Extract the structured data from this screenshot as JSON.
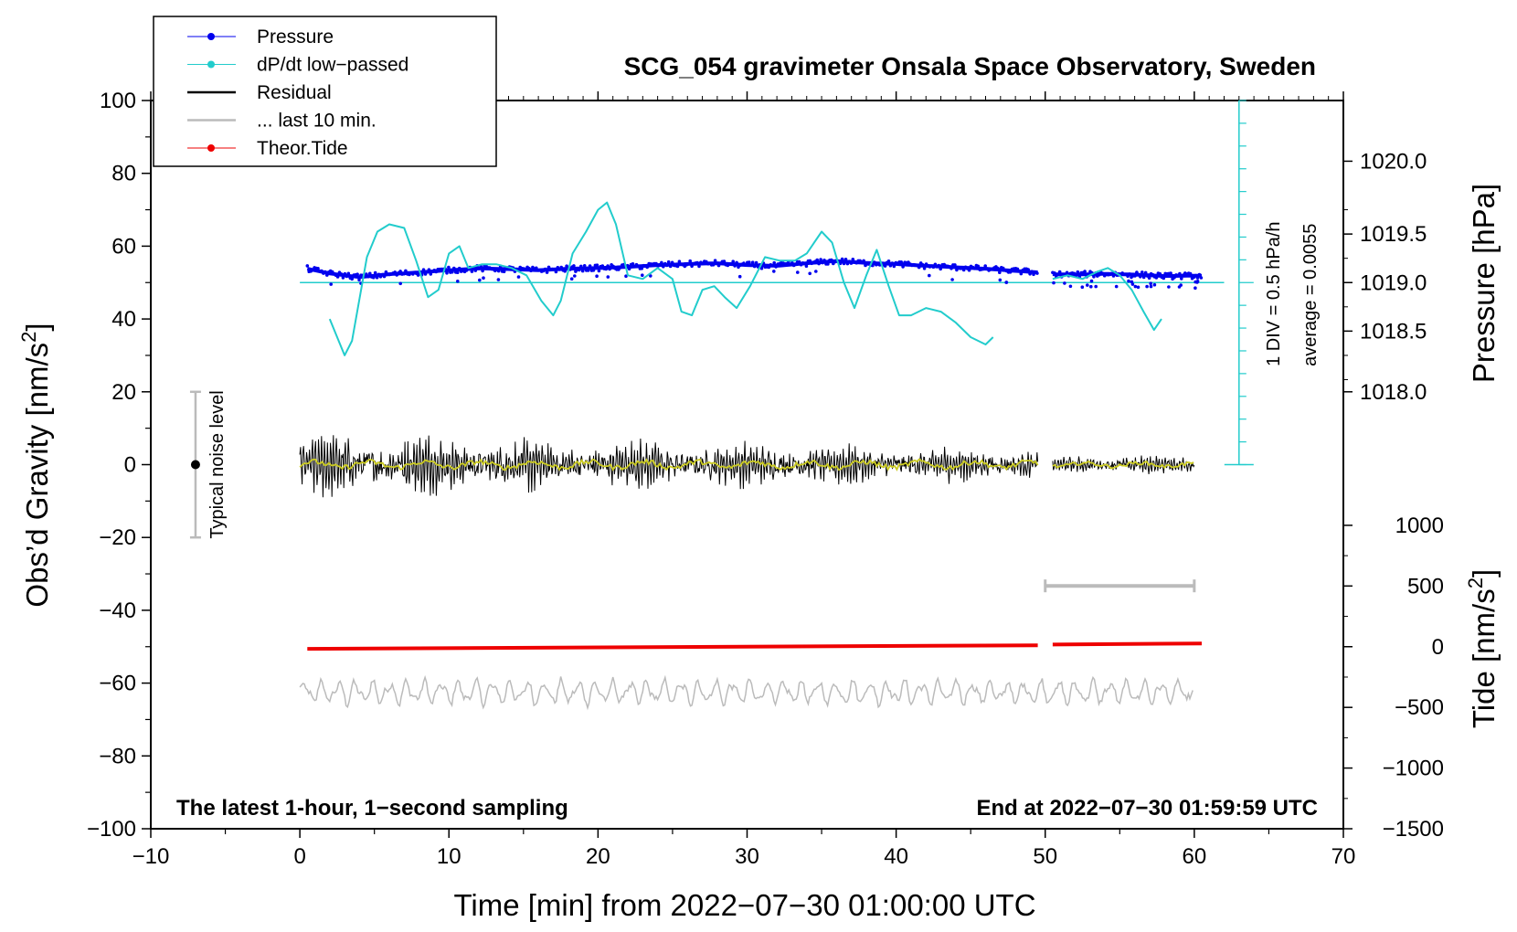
{
  "chart_data": {
    "type": "line",
    "title": "SCG_054 gravimeter Onsala Space Observatory, Sweden",
    "xlabel": "Time [min] from 2022−07−30 01:00:00 UTC",
    "ylabel_left_main": "Obs’d Gravity [nm/s",
    "ylabel_left_sup": "2",
    "ylabel_left_end": "]",
    "ylabel_right_pressure": "Pressure [hPa]",
    "ylabel_right_tide_main": "Tide [nm/s",
    "ylabel_right_tide_sup": "2",
    "ylabel_right_tide_end": "]",
    "xlim": [
      -10,
      70
    ],
    "ylim": [
      -100,
      100
    ],
    "x_ticks": [
      "−10",
      "0",
      "10",
      "20",
      "30",
      "40",
      "50",
      "60",
      "70"
    ],
    "x_tick_values": [
      -10,
      0,
      10,
      20,
      30,
      40,
      50,
      60,
      70
    ],
    "y_ticks": [
      "−100",
      "−80",
      "−60",
      "−40",
      "−20",
      "0",
      "20",
      "40",
      "60",
      "80",
      "100"
    ],
    "y_tick_values": [
      -100,
      -80,
      -60,
      -40,
      -20,
      0,
      20,
      40,
      60,
      80,
      100
    ],
    "pressure_axis": {
      "ticks": [
        "1018.0",
        "1018.5",
        "1019.0",
        "1019.5",
        "1020.0"
      ],
      "values": [
        1018.0,
        1018.5,
        1019.0,
        1019.5,
        1020.0
      ],
      "gravity_equiv": [
        20,
        36.67,
        50,
        63.33,
        83.33
      ]
    },
    "tide_axis": {
      "ticks": [
        "1000",
        "500",
        "0",
        "−500",
        "−1000",
        "−1500"
      ],
      "values": [
        1000,
        500,
        0,
        -500,
        -1000,
        -1500
      ],
      "gravity_equiv": [
        -16.67,
        -33.33,
        -50,
        -66.67,
        -83.33,
        -100
      ]
    },
    "legend": [
      {
        "label": "Pressure",
        "color": "#0000ee",
        "style": "line-dot"
      },
      {
        "label": "dP/dt low−passed",
        "color": "#22cccc",
        "style": "line-dot"
      },
      {
        "label": "Residual",
        "color": "#000000",
        "style": "line"
      },
      {
        "label": "... last 10 min.",
        "color": "#bbbbbb",
        "style": "line"
      },
      {
        "label": "Theor.Tide",
        "color": "#ee0000",
        "style": "line-dot"
      }
    ],
    "dpdt_scale": {
      "div_label": "1 DIV = 0.5 hPa/h",
      "average_label": "average = 0.0055",
      "x": 63,
      "ymin": 0,
      "ymax": 100,
      "baseline": 50,
      "tick_step": 6.25
    },
    "noise_bar": {
      "label": "Typical noise level",
      "x": -7,
      "center": 0,
      "half_range": 20
    },
    "last10_bar": {
      "x_start": 50,
      "x_end": 60,
      "y": -33.3
    },
    "series": [
      {
        "name": "dP/dt low−passed",
        "color": "#22cccc",
        "x": [
          2.0,
          3.0,
          3.5,
          4.5,
          5.2,
          6.0,
          7.0,
          7.8,
          8.6,
          9.3,
          10.0,
          10.7,
          11.3,
          12.2,
          13.2,
          14.2,
          15.2,
          16.2,
          17.0,
          17.5,
          18.3,
          19.2,
          20.0,
          20.6,
          21.2,
          22.0,
          23.0,
          24.0,
          25.0,
          25.6,
          26.3,
          27.0,
          27.8,
          28.5,
          29.3,
          30.2,
          31.2,
          32.2,
          33.2,
          34.0,
          35.0,
          35.7,
          36.5,
          37.2,
          38.0,
          38.7,
          39.5,
          40.2,
          41.0,
          42.0,
          43.0,
          44.0,
          45.0,
          46.0,
          46.5
        ],
        "y": [
          40,
          30,
          34,
          57,
          64,
          66,
          65,
          56,
          46,
          48,
          58,
          60,
          54,
          55,
          55,
          54,
          52,
          45,
          41,
          45,
          58,
          64,
          70,
          72,
          66,
          52,
          51,
          54,
          51,
          42,
          41,
          48,
          49,
          46,
          43,
          49,
          57,
          56,
          56,
          58,
          64,
          61,
          50,
          43,
          52,
          59,
          49,
          41,
          41,
          43,
          42,
          39,
          35,
          33,
          35
        ]
      },
      {
        "name": "dP/dt low−passed (after gap)",
        "color": "#22cccc",
        "x": [
          50.5,
          51.5,
          52.5,
          53.5,
          54.2,
          55.0,
          55.8,
          56.6,
          57.3,
          57.8
        ],
        "y": [
          51,
          52,
          51,
          53,
          54,
          52,
          48,
          42,
          37,
          40
        ]
      },
      {
        "name": "Pressure",
        "color": "#0000ee",
        "x": [
          0.5,
          2,
          4,
          6,
          8,
          10,
          12,
          14,
          16,
          18,
          20,
          22,
          24,
          26,
          28,
          30,
          32,
          34,
          36,
          38,
          40,
          42,
          44,
          46,
          48,
          49.5
        ],
        "y": [
          53.8,
          52.5,
          51.5,
          52.3,
          52.8,
          53.4,
          53.9,
          53.7,
          53.4,
          53.8,
          54.0,
          54.3,
          54.8,
          55.1,
          55.3,
          54.8,
          54.6,
          55.3,
          55.9,
          55.4,
          55.1,
          54.6,
          54.2,
          53.8,
          53.2,
          52.8
        ]
      },
      {
        "name": "Pressure (after gap)",
        "color": "#0000ee",
        "x": [
          50.5,
          52,
          54,
          56,
          58,
          60.5
        ],
        "y": [
          52.3,
          52.2,
          52.4,
          52.2,
          51.8,
          51.9
        ]
      },
      {
        "name": "Residual",
        "color": "#000000",
        "x_start": 0,
        "x_end": 49.5,
        "x2_start": 50.5,
        "x2_end": 60,
        "amplitude_start": 8,
        "amplitude_end": 4,
        "amplitude_after_gap": 2.5
      },
      {
        "name": "Theor.Tide",
        "color": "#ee0000",
        "x": [
          0.5,
          49.5
        ],
        "y": [
          -50.6,
          -49.6
        ],
        "x2": [
          50.5,
          60.5
        ],
        "y2": [
          -49.4,
          -49.1
        ]
      },
      {
        "name": "... last 10 min.",
        "color": "#bbbbbb",
        "x_start": 0,
        "x_end": 60,
        "center": -62.5,
        "amplitude": 3
      }
    ],
    "annotations": [
      {
        "text": "The latest 1-hour, 1−second sampling",
        "position": "bottom-left"
      },
      {
        "text": "End at 2022−07−30 01:59:59 UTC",
        "position": "bottom-right"
      }
    ]
  }
}
